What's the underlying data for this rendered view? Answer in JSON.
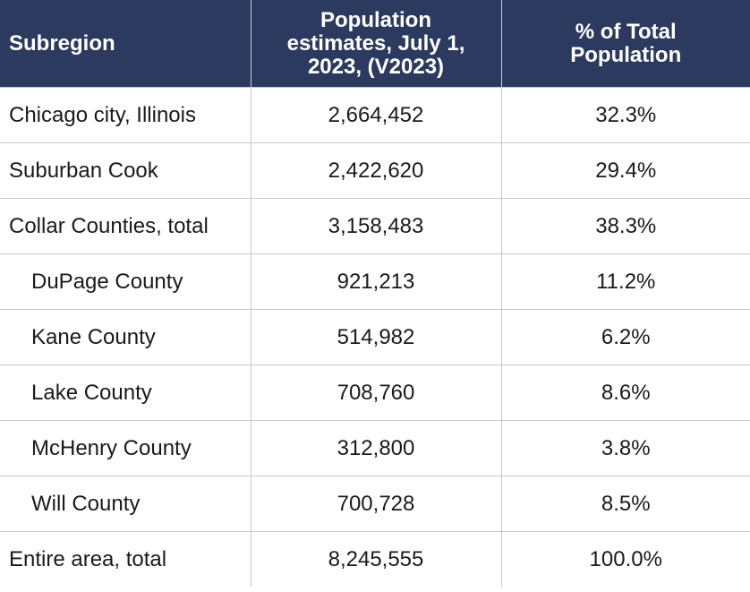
{
  "chart_data": {
    "type": "table",
    "columns": [
      "Subregion",
      "Population estimates, July 1, 2023, (V2023)",
      "% of Total Population"
    ],
    "header_lines": [
      "Subregion",
      "Population\nestimates, July 1,\n2023, (V2023)",
      "% of Total\nPopulation"
    ],
    "rows": [
      {
        "subregion": "Chicago city, Illinois",
        "population": "2,664,452",
        "percent": "32.3%",
        "indent": false
      },
      {
        "subregion": "Suburban Cook",
        "population": "2,422,620",
        "percent": "29.4%",
        "indent": false
      },
      {
        "subregion": "Collar Counties, total",
        "population": "3,158,483",
        "percent": "38.3%",
        "indent": false
      },
      {
        "subregion": "DuPage County",
        "population": "921,213",
        "percent": "11.2%",
        "indent": true
      },
      {
        "subregion": "Kane County",
        "population": "514,982",
        "percent": "6.2%",
        "indent": true
      },
      {
        "subregion": "Lake County",
        "population": "708,760",
        "percent": "8.6%",
        "indent": true
      },
      {
        "subregion": "McHenry County",
        "population": "312,800",
        "percent": "3.8%",
        "indent": true
      },
      {
        "subregion": "Will County",
        "population": "700,728",
        "percent": "8.5%",
        "indent": true
      },
      {
        "subregion": "Entire area, total",
        "population": "8,245,555",
        "percent": "100.0%",
        "indent": false
      }
    ]
  },
  "colors": {
    "header_background": "#2b3a5e",
    "header_text": "#ffffff",
    "grid_line": "#c8c8c8"
  }
}
